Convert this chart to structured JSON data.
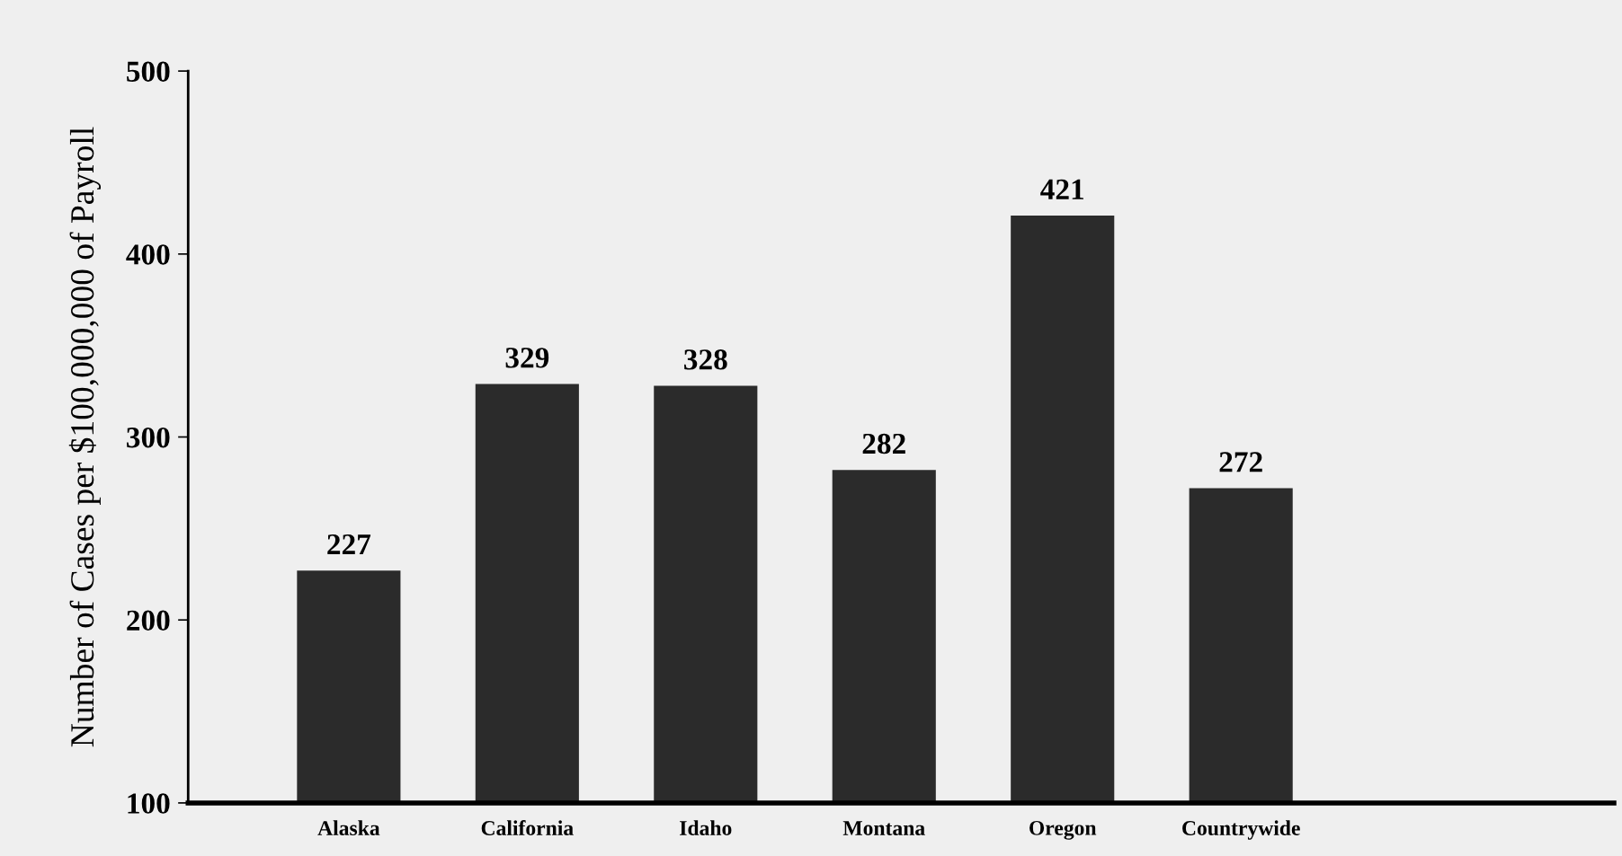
{
  "chart_data": {
    "type": "bar",
    "ylabel": "Number of Cases per $100,000,000 of Payroll",
    "categories": [
      "Alaska",
      "California",
      "Idaho",
      "Montana",
      "Oregon",
      "Countrywide"
    ],
    "values": [
      227,
      329,
      328,
      282,
      421,
      272
    ],
    "color": "#2b2b2b",
    "ylim": [
      100,
      500
    ],
    "yticks": [
      100,
      200,
      300,
      400,
      500
    ],
    "data_labels": true
  }
}
